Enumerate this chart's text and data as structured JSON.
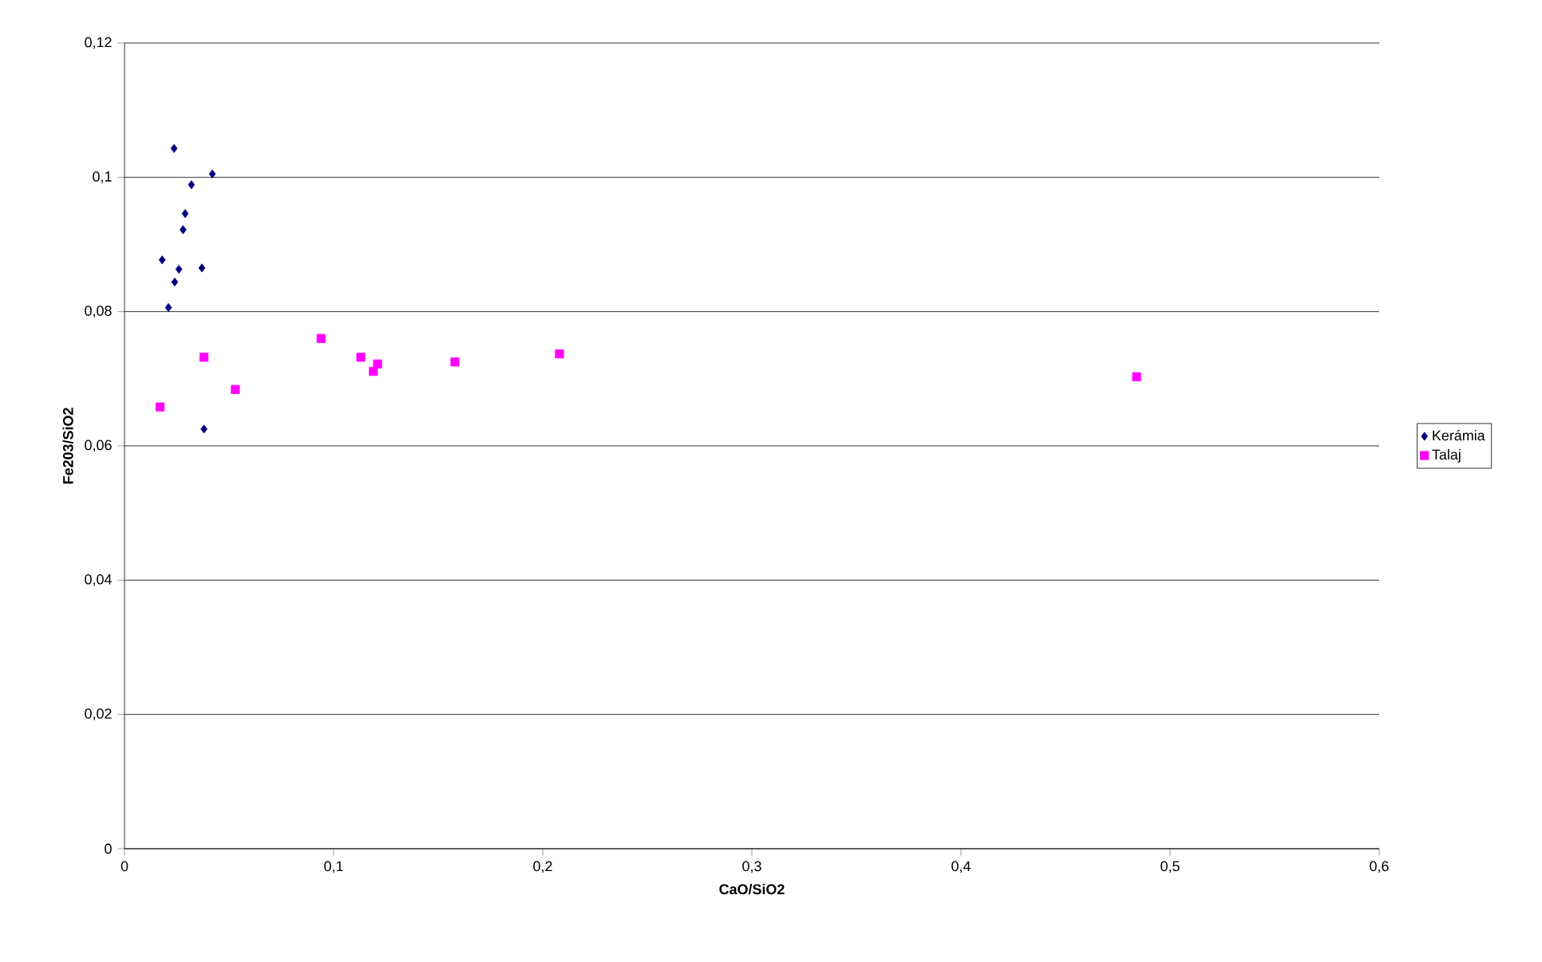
{
  "chart_data": {
    "type": "scatter",
    "xlabel": "CaO/SiO2",
    "ylabel": "Fe203/SiO2",
    "xlim": [
      0,
      0.6
    ],
    "ylim": [
      0,
      0.12
    ],
    "xticks": [
      0,
      {
        "value": 0.1,
        "label": "0,1"
      },
      {
        "value": 0.2,
        "label": "0,2"
      },
      {
        "value": 0.3,
        "label": "0,3"
      },
      {
        "value": 0.4,
        "label": "0,4"
      },
      {
        "value": 0.5,
        "label": "0,5"
      },
      {
        "value": 0.6,
        "label": "0,6"
      }
    ],
    "yticks": [
      0,
      {
        "value": 0.02,
        "label": "0,02"
      },
      {
        "value": 0.04,
        "label": "0,04"
      },
      {
        "value": 0.06,
        "label": "0,06"
      },
      {
        "value": 0.08,
        "label": "0,08"
      },
      {
        "value": 0.1,
        "label": "0,1"
      },
      {
        "value": 0.12,
        "label": "0,12"
      }
    ],
    "grid": "y",
    "legend": "right",
    "series": [
      {
        "name": "Kerámia",
        "color": "#000080",
        "marker": "diamond",
        "x": [
          0.0237,
          0.042,
          0.032,
          0.029,
          0.028,
          0.018,
          0.026,
          0.037,
          0.024,
          0.021,
          0.038
        ],
        "values": [
          0.1043,
          0.1005,
          0.0989,
          0.0946,
          0.0922,
          0.0877,
          0.0863,
          0.0865,
          0.0844,
          0.0806,
          0.0625
        ]
      },
      {
        "name": "Talaj",
        "color": "#ff00ff",
        "marker": "square",
        "x": [
          0.038,
          0.053,
          0.017,
          0.094,
          0.113,
          0.121,
          0.119,
          0.158,
          0.208,
          0.484
        ],
        "values": [
          0.0732,
          0.0684,
          0.0658,
          0.076,
          0.0732,
          0.0722,
          0.0711,
          0.0725,
          0.0737,
          0.0703
        ]
      }
    ]
  }
}
